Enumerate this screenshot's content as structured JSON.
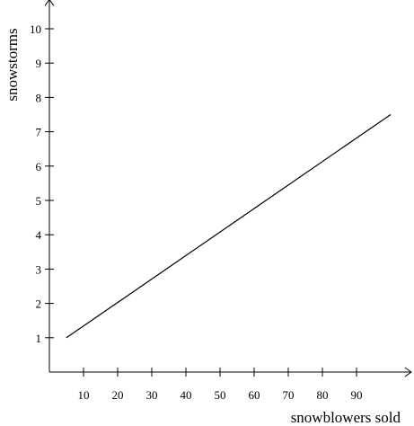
{
  "chart_data": {
    "type": "line",
    "xlabel": "snowblowers sold",
    "ylabel": "snowstorms",
    "xlim": [
      0,
      105
    ],
    "ylim": [
      0,
      10.8
    ],
    "x_ticks": [
      10,
      20,
      30,
      40,
      50,
      60,
      70,
      80,
      90
    ],
    "y_ticks": [
      1,
      2,
      3,
      4,
      5,
      6,
      7,
      8,
      9,
      10
    ],
    "grid": false,
    "series": [
      {
        "x": [
          5,
          100
        ],
        "y": [
          1,
          7.5
        ]
      }
    ],
    "colors": {
      "line": "#000000",
      "axis": "#000000"
    }
  }
}
